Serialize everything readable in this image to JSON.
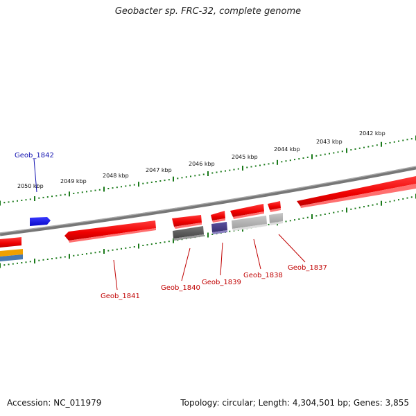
{
  "title": "Geobacter sp. FRC-32, complete genome",
  "footer": {
    "accession": "Accession: NC_011979",
    "summary": "Topology: circular; Length: 4,304,501 bp; Genes: 3,855"
  },
  "ruler_labels": [
    "2042 kbp",
    "2043 kbp",
    "2044 kbp",
    "2045 kbp",
    "2046 kbp",
    "2047 kbp",
    "2048 kbp",
    "2049 kbp",
    "2050 kbp"
  ],
  "gene_labels": [
    "Geob_1842",
    "Geob_1841",
    "Geob_1840",
    "Geob_1839",
    "Geob_1838",
    "Geob_1837"
  ],
  "colors": {
    "gene_red": "#ee0000",
    "gene_blue": "#0a0ae0",
    "gene_dark_gray": "#555555",
    "gene_purple": "#4a3f8a",
    "gene_light_gray": "#b5b5b5",
    "gene_orange": "#f0a000",
    "gene_steel": "#4a7ab0",
    "backbone": "#777777",
    "ruler": "#1a7a1a"
  }
}
